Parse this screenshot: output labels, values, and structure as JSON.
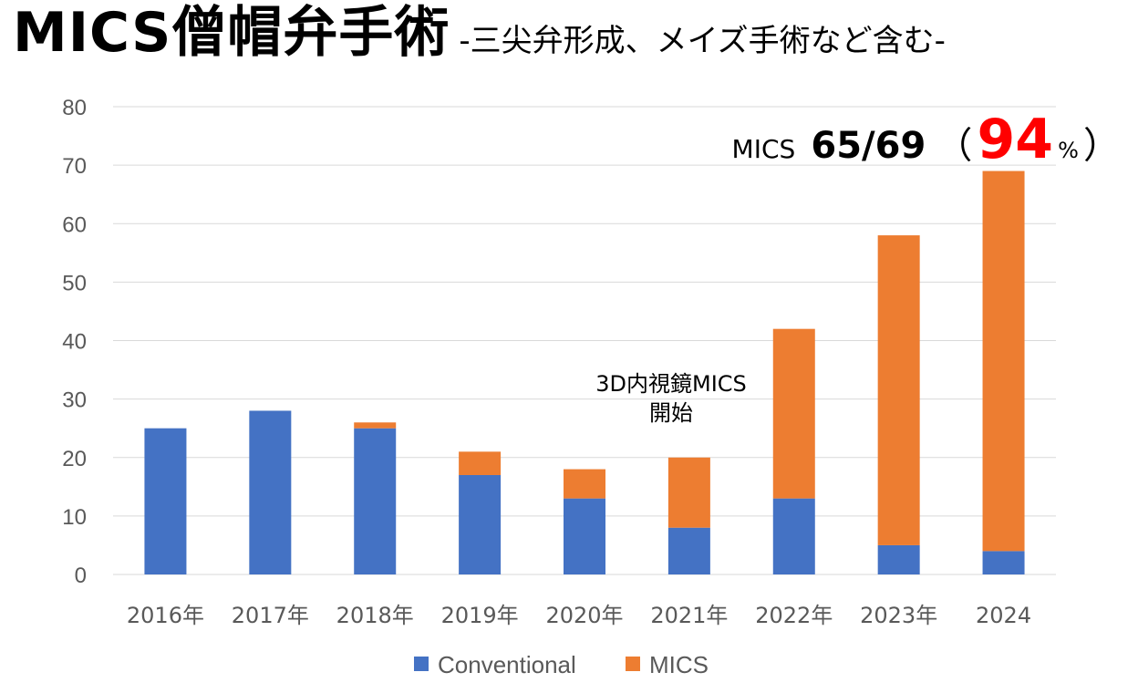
{
  "header": {
    "title": "MICS僧帽弁手術",
    "subtitle": "-三尖弁形成、メイズ手術など含む-"
  },
  "colors": {
    "conventional": "#4472c4",
    "mics": "#ed7d31",
    "highlight": "#ff0000",
    "grid": "#d9d9d9",
    "axis_text": "#595959"
  },
  "chart_data": {
    "type": "bar",
    "stacked": true,
    "categories": [
      "2016年",
      "2017年",
      "2018年",
      "2019年",
      "2020年",
      "2021年",
      "2022年",
      "2023年",
      "2024"
    ],
    "series": [
      {
        "name": "Conventional",
        "values": [
          25,
          28,
          25,
          17,
          13,
          8,
          13,
          5,
          4
        ]
      },
      {
        "name": "MICS",
        "values": [
          0,
          0,
          1,
          4,
          5,
          12,
          29,
          53,
          65
        ]
      }
    ],
    "ylim": [
      0,
      80
    ],
    "yticks": [
      0,
      10,
      20,
      30,
      40,
      50,
      60,
      70,
      80
    ],
    "grid": true,
    "legend": "bottom",
    "annotations": [
      {
        "lines": [
          "3D内視鏡MICS",
          "開始"
        ],
        "category": "2021年"
      }
    ],
    "highlight": {
      "label": "MICS",
      "fraction": "65/69",
      "open_paren": "（",
      "percent_value": "94",
      "percent_sign": "%",
      "close_paren": "）"
    }
  }
}
